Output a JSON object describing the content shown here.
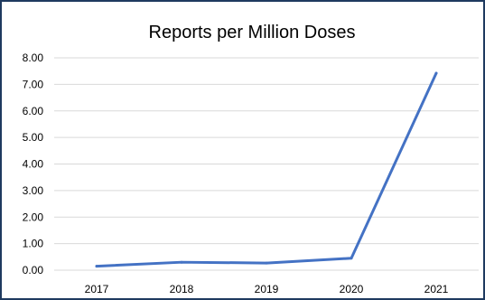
{
  "chart_data": {
    "type": "line",
    "title": "Reports per Million Doses",
    "xlabel": "",
    "ylabel": "",
    "categories": [
      "2017",
      "2018",
      "2019",
      "2020",
      "2021"
    ],
    "series": [
      {
        "values": [
          0.15,
          0.3,
          0.27,
          0.45,
          7.42
        ]
      }
    ],
    "y_ticks": [
      "0.00",
      "1.00",
      "2.00",
      "3.00",
      "4.00",
      "5.00",
      "6.00",
      "7.00",
      "8.00"
    ],
    "ylim": [
      0,
      8
    ],
    "grid": true,
    "legend": "none",
    "colors": {
      "line": "#4472c4",
      "grid": "#d9d9d9",
      "border": "#1f3a5f"
    }
  }
}
